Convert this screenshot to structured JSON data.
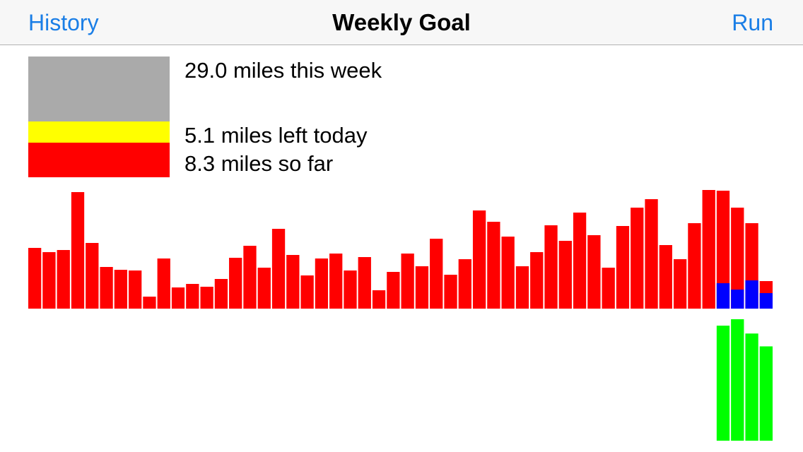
{
  "navbar": {
    "left_label": "History",
    "title": "Weekly Goal",
    "right_label": "Run",
    "link_color": "#1a7ee6"
  },
  "summary": {
    "week_text": "29.0 miles this week",
    "left_today_text": "5.1 miles left today",
    "so_far_text": "8.3 miles so far",
    "colors": {
      "remaining": "#aaaaaa",
      "today": "#ffff00",
      "so_far": "#ff0000"
    },
    "breakdown_miles": {
      "week_goal": 29.0,
      "left_today": 5.1,
      "so_far": 8.3
    }
  },
  "chart_data": {
    "type": "bar",
    "colors": {
      "run": "#ff0000",
      "overlay": "#0000ff",
      "lower": "#00ff00"
    },
    "upper": {
      "values": [
        8.6,
        8.0,
        8.3,
        16.5,
        9.3,
        5.9,
        5.5,
        5.4,
        1.7,
        7.1,
        3.0,
        3.5,
        3.1,
        4.2,
        7.2,
        8.9,
        5.8,
        11.3,
        7.6,
        4.7,
        7.1,
        7.8,
        5.4,
        7.3,
        2.6,
        5.2,
        7.8,
        6.0,
        9.9,
        4.8,
        7.0,
        13.9,
        12.3,
        10.2,
        6.0,
        8.0,
        11.8,
        9.6,
        13.6,
        10.4,
        5.8,
        11.7,
        14.3,
        15.5,
        9.0,
        7.0,
        12.1,
        16.8,
        16.7,
        14.3,
        12.1,
        3.9
      ],
      "overlay_values": [
        null,
        null,
        null,
        null,
        null,
        null,
        null,
        null,
        null,
        null,
        null,
        null,
        null,
        null,
        null,
        null,
        null,
        null,
        null,
        null,
        null,
        null,
        null,
        null,
        null,
        null,
        null,
        null,
        null,
        null,
        null,
        null,
        null,
        null,
        null,
        null,
        null,
        null,
        null,
        null,
        null,
        null,
        null,
        null,
        null,
        null,
        null,
        null,
        3.6,
        2.7,
        4.0,
        2.2
      ],
      "ylim": [
        0,
        17
      ]
    },
    "lower": {
      "values": [
        null,
        null,
        null,
        null,
        null,
        null,
        null,
        null,
        null,
        null,
        null,
        null,
        null,
        null,
        null,
        null,
        null,
        null,
        null,
        null,
        null,
        null,
        null,
        null,
        null,
        null,
        null,
        null,
        null,
        null,
        null,
        null,
        null,
        null,
        null,
        null,
        null,
        null,
        null,
        null,
        null,
        null,
        null,
        null,
        null,
        null,
        null,
        null,
        16.1,
        17.0,
        15.0,
        13.2
      ],
      "ylim": [
        0,
        17
      ]
    }
  }
}
